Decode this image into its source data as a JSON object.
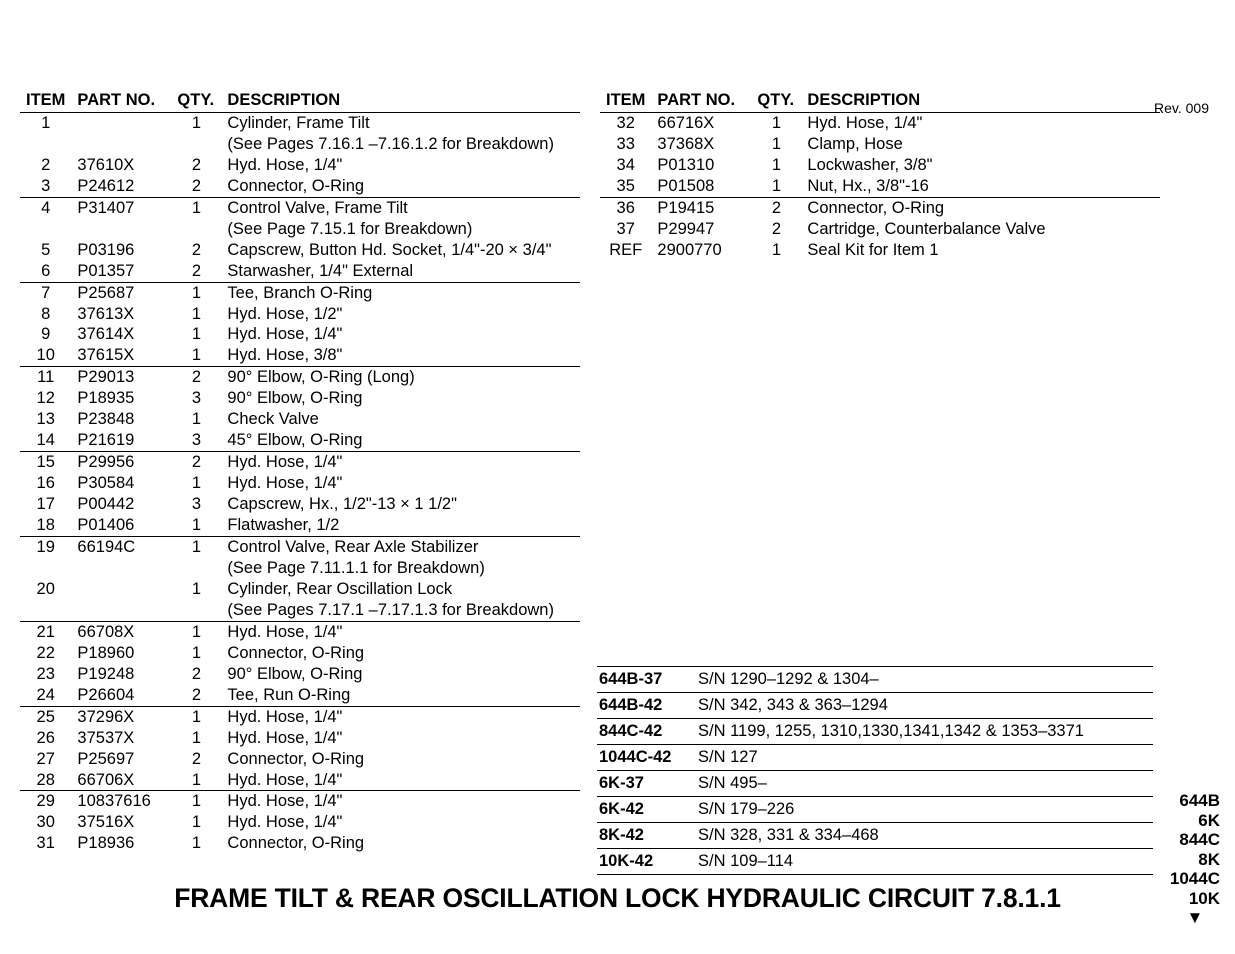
{
  "revision": "Rev. 009",
  "headers": {
    "item": "ITEM",
    "part": "PART NO.",
    "qty": "QTY.",
    "desc": "DESCRIPTION"
  },
  "left_rows": [
    {
      "item": "1",
      "part": "",
      "qty": "1",
      "desc": "Cylinder, Frame Tilt",
      "gt": false
    },
    {
      "item": "",
      "part": "",
      "qty": "",
      "desc": "(See Pages 7.16.1 –7.16.1.2 for Breakdown)",
      "gt": false
    },
    {
      "item": "2",
      "part": "37610X",
      "qty": "2",
      "desc": "Hyd. Hose, 1/4\"",
      "gt": false
    },
    {
      "item": "3",
      "part": "P24612",
      "qty": "2",
      "desc": "Connector, O-Ring",
      "gt": false
    },
    {
      "item": "4",
      "part": "P31407",
      "qty": "1",
      "desc": "Control Valve, Frame Tilt",
      "gt": true
    },
    {
      "item": "",
      "part": "",
      "qty": "",
      "desc": "(See Page 7.15.1 for Breakdown)",
      "gt": false
    },
    {
      "item": "5",
      "part": "P03196",
      "qty": "2",
      "desc": "Capscrew, Button Hd. Socket, 1/4\"-20 × 3/4\"",
      "gt": false
    },
    {
      "item": "6",
      "part": "P01357",
      "qty": "2",
      "desc": "Starwasher, 1/4\" External",
      "gt": false
    },
    {
      "item": "7",
      "part": "P25687",
      "qty": "1",
      "desc": "Tee, Branch O-Ring",
      "gt": true
    },
    {
      "item": "8",
      "part": "37613X",
      "qty": "1",
      "desc": "Hyd. Hose, 1/2\"",
      "gt": false
    },
    {
      "item": "9",
      "part": "37614X",
      "qty": "1",
      "desc": "Hyd. Hose, 1/4\"",
      "gt": false
    },
    {
      "item": "10",
      "part": "37615X",
      "qty": "1",
      "desc": "Hyd. Hose, 3/8\"",
      "gt": false
    },
    {
      "item": "11",
      "part": "P29013",
      "qty": "2",
      "desc": "90° Elbow, O-Ring (Long)",
      "gt": true
    },
    {
      "item": "12",
      "part": "P18935",
      "qty": "3",
      "desc": "90° Elbow, O-Ring",
      "gt": false
    },
    {
      "item": "13",
      "part": "P23848",
      "qty": "1",
      "desc": "Check Valve",
      "gt": false
    },
    {
      "item": "14",
      "part": "P21619",
      "qty": "3",
      "desc": "45° Elbow, O-Ring",
      "gt": false
    },
    {
      "item": "15",
      "part": "P29956",
      "qty": "2",
      "desc": "Hyd. Hose, 1/4\"",
      "gt": true
    },
    {
      "item": "16",
      "part": "P30584",
      "qty": "1",
      "desc": "Hyd. Hose, 1/4\"",
      "gt": false
    },
    {
      "item": "17",
      "part": "P00442",
      "qty": "3",
      "desc": "Capscrew, Hx., 1/2\"-13 × 1 1/2\"",
      "gt": false
    },
    {
      "item": "18",
      "part": "P01406",
      "qty": "1",
      "desc": "Flatwasher, 1/2",
      "gt": false
    },
    {
      "item": "19",
      "part": "66194C",
      "qty": "1",
      "desc": "Control Valve, Rear Axle Stabilizer",
      "gt": true
    },
    {
      "item": "",
      "part": "",
      "qty": "",
      "desc": "(See Page 7.11.1.1 for Breakdown)",
      "gt": false
    },
    {
      "item": "20",
      "part": "",
      "qty": "1",
      "desc": "Cylinder, Rear Oscillation Lock",
      "gt": false
    },
    {
      "item": "",
      "part": "",
      "qty": "",
      "desc": "(See Pages 7.17.1 –7.17.1.3 for Breakdown)",
      "gt": false
    },
    {
      "item": "21",
      "part": "66708X",
      "qty": "1",
      "desc": "Hyd. Hose, 1/4\"",
      "gt": true
    },
    {
      "item": "22",
      "part": "P18960",
      "qty": "1",
      "desc": "Connector, O-Ring",
      "gt": false
    },
    {
      "item": "23",
      "part": "P19248",
      "qty": "2",
      "desc": "90° Elbow, O-Ring",
      "gt": false
    },
    {
      "item": "24",
      "part": "P26604",
      "qty": "2",
      "desc": "Tee, Run O-Ring",
      "gt": false
    },
    {
      "item": "25",
      "part": "37296X",
      "qty": "1",
      "desc": "Hyd. Hose, 1/4\"",
      "gt": true
    },
    {
      "item": "26",
      "part": "37537X",
      "qty": "1",
      "desc": "Hyd. Hose, 1/4\"",
      "gt": false
    },
    {
      "item": "27",
      "part": "P25697",
      "qty": "2",
      "desc": "Connector, O-Ring",
      "gt": false
    },
    {
      "item": "28",
      "part": "66706X",
      "qty": "1",
      "desc": "Hyd. Hose, 1/4\"",
      "gt": false
    },
    {
      "item": "29",
      "part": "10837616",
      "qty": "1",
      "desc": "Hyd. Hose, 1/4\"",
      "gt": true
    },
    {
      "item": "30",
      "part": "37516X",
      "qty": "1",
      "desc": "Hyd. Hose, 1/4\"",
      "gt": false
    },
    {
      "item": "31",
      "part": "P18936",
      "qty": "1",
      "desc": "Connector, O-Ring",
      "gt": false
    }
  ],
  "right_rows": [
    {
      "item": "32",
      "part": "66716X",
      "qty": "1",
      "desc": "Hyd. Hose, 1/4\"",
      "gt": false
    },
    {
      "item": "33",
      "part": "37368X",
      "qty": "1",
      "desc": "Clamp, Hose",
      "gt": false
    },
    {
      "item": "34",
      "part": "P01310",
      "qty": "1",
      "desc": "Lockwasher, 3/8\"",
      "gt": false
    },
    {
      "item": "35",
      "part": "P01508",
      "qty": "1",
      "desc": "Nut, Hx., 3/8\"-16",
      "gt": false
    },
    {
      "item": "36",
      "part": "P19415",
      "qty": "2",
      "desc": "Connector, O-Ring",
      "gt": true
    },
    {
      "item": "37",
      "part": "P29947",
      "qty": "2",
      "desc": "Cartridge, Counterbalance Valve",
      "gt": false
    },
    {
      "item": "REF",
      "part": "2900770",
      "qty": "1",
      "desc": "Seal Kit for Item 1",
      "gt": false
    }
  ],
  "sn_rows": [
    {
      "model": "644B-37",
      "sn": "S/N 1290–1292 & 1304–"
    },
    {
      "model": "644B-42",
      "sn": "S/N 342, 343 & 363–1294"
    },
    {
      "model": "844C-42",
      "sn": "S/N 1199, 1255, 1310,1330,1341,1342 & 1353–3371"
    },
    {
      "model": "1044C-42",
      "sn": "S/N 127"
    },
    {
      "model": "6K-37",
      "sn": "S/N 495–"
    },
    {
      "model": "6K-42",
      "sn": "S/N 179–226"
    },
    {
      "model": "8K-42",
      "sn": "S/N 328, 331 & 334–468"
    },
    {
      "model": "10K-42",
      "sn": "S/N 109–114"
    }
  ],
  "model_list": [
    "644B",
    "6K",
    "844C",
    "8K",
    "1044C",
    "10K"
  ],
  "title": "FRAME TILT & REAR OSCILLATION LOCK HYDRAULIC CIRCUIT 7.8.1.1"
}
